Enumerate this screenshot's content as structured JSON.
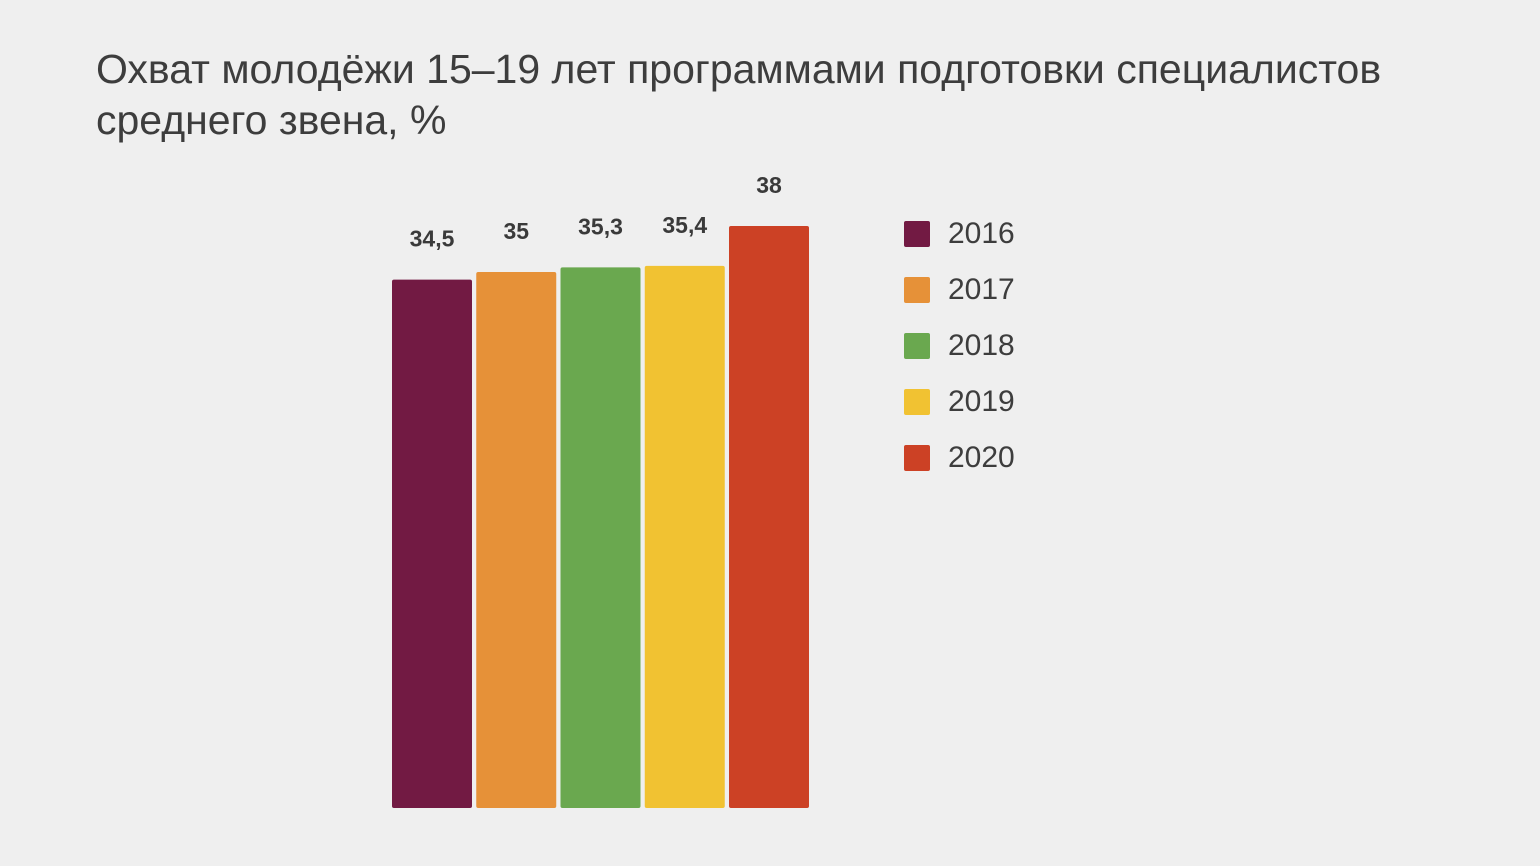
{
  "chart_data": {
    "type": "bar",
    "title": "Охват молодёжи 15–19 лет программами подготовки специалистов среднего звена, %",
    "xlabel": "",
    "ylabel": "",
    "ylim": [
      0,
      38
    ],
    "grid": false,
    "legend_position": "right",
    "categories": [
      "2016",
      "2017",
      "2018",
      "2019",
      "2020"
    ],
    "series": [
      {
        "name": "2016",
        "value": 34.5,
        "label": "34,5",
        "color": "#721a43"
      },
      {
        "name": "2017",
        "value": 35,
        "label": "35",
        "color": "#e69138"
      },
      {
        "name": "2018",
        "value": 35.3,
        "label": "35,3",
        "color": "#6aa84f"
      },
      {
        "name": "2019",
        "value": 35.4,
        "label": "35,4",
        "color": "#f1c232"
      },
      {
        "name": "2020",
        "value": 38,
        "label": "38",
        "color": "#cc4125"
      }
    ]
  }
}
